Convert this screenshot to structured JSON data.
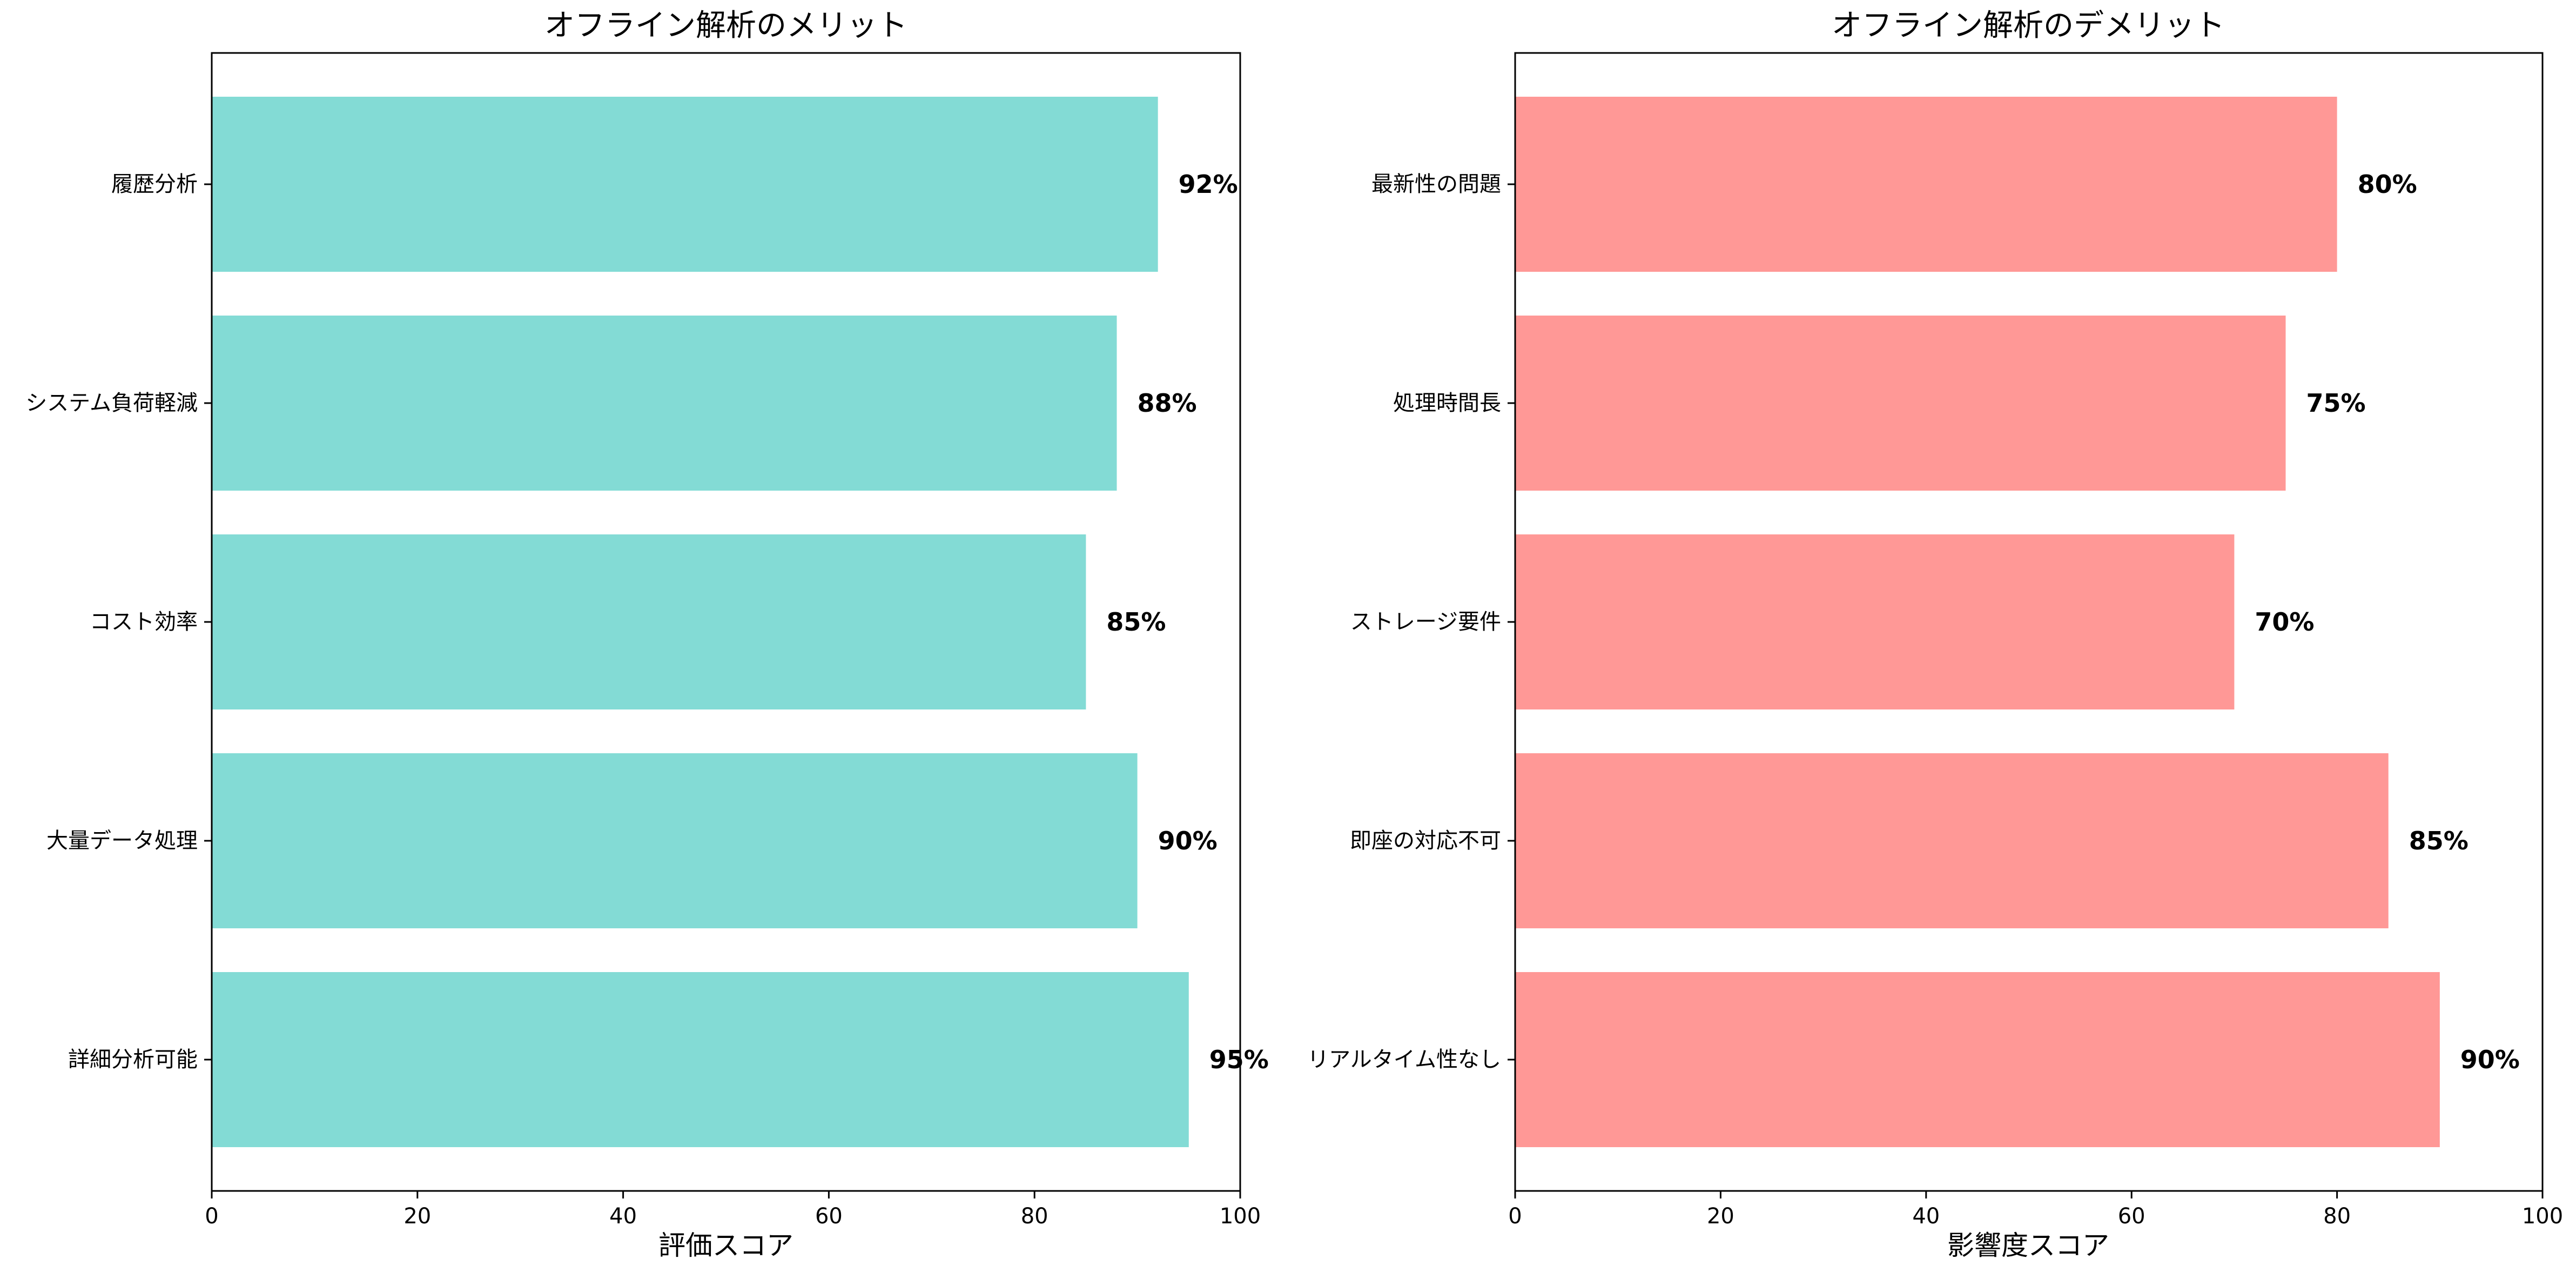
{
  "chart_data": [
    {
      "type": "bar",
      "orientation": "horizontal",
      "title": "オフライン解析のメリット",
      "xlabel": "評価スコア",
      "ylabel": "",
      "categories": [
        "詳細分析可能",
        "大量データ処理",
        "コスト効率",
        "システム負荷軽減",
        "履歴分析"
      ],
      "values": [
        95,
        90,
        85,
        88,
        92
      ],
      "value_labels": [
        "95%",
        "90%",
        "85%",
        "88%",
        "92%"
      ],
      "xlim": [
        0,
        100
      ],
      "xticks": [
        0,
        20,
        40,
        60,
        80,
        100
      ],
      "xtick_labels": [
        "0",
        "20",
        "40",
        "60",
        "80",
        "100"
      ],
      "bar_color": "#83dbd5",
      "grid": false
    },
    {
      "type": "bar",
      "orientation": "horizontal",
      "title": "オフライン解析のデメリット",
      "xlabel": "影響度スコア",
      "ylabel": "",
      "categories": [
        "リアルタイム性なし",
        "即座の対応不可",
        "ストレージ要件",
        "処理時間長",
        "最新性の問題"
      ],
      "values": [
        90,
        85,
        70,
        75,
        80
      ],
      "value_labels": [
        "90%",
        "85%",
        "70%",
        "75%",
        "80%"
      ],
      "xlim": [
        0,
        100
      ],
      "xticks": [
        0,
        20,
        40,
        60,
        80,
        100
      ],
      "xtick_labels": [
        "0",
        "20",
        "40",
        "60",
        "80",
        "100"
      ],
      "bar_color": "#ff9896",
      "grid": false
    }
  ]
}
